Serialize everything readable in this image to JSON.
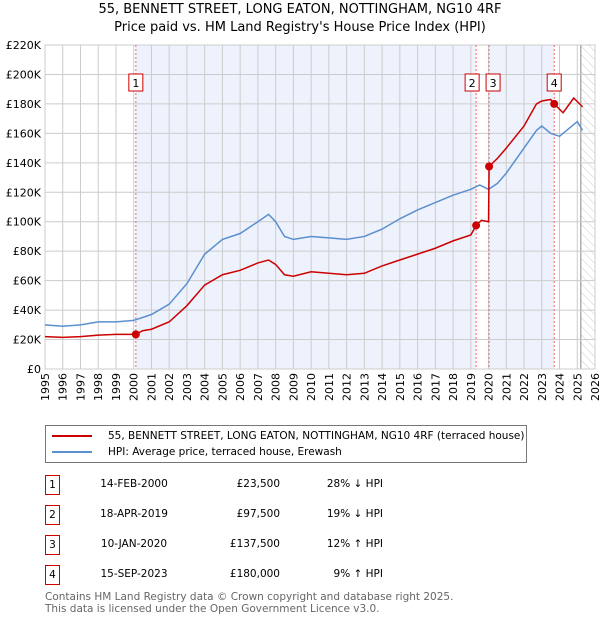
{
  "chart_data": {
    "type": "line",
    "title": "55, BENNETT STREET, LONG EATON, NOTTINGHAM, NG10 4RF",
    "subtitle": "Price paid vs. HM Land Registry's House Price Index (HPI)",
    "xlim": [
      1995,
      2026
    ],
    "ylim": [
      0,
      220000
    ],
    "x_ticks": [
      "1995",
      "1996",
      "1997",
      "1998",
      "1999",
      "2000",
      "2001",
      "2002",
      "2003",
      "2004",
      "2005",
      "2006",
      "2007",
      "2008",
      "2009",
      "2010",
      "2011",
      "2012",
      "2013",
      "2014",
      "2015",
      "2016",
      "2017",
      "2018",
      "2019",
      "2020",
      "2021",
      "2022",
      "2023",
      "2024",
      "2025",
      "2026"
    ],
    "y_ticks": [
      {
        "v": 0,
        "label": "£0"
      },
      {
        "v": 20000,
        "label": "£20K"
      },
      {
        "v": 40000,
        "label": "£40K"
      },
      {
        "v": 60000,
        "label": "£60K"
      },
      {
        "v": 80000,
        "label": "£80K"
      },
      {
        "v": 100000,
        "label": "£100K"
      },
      {
        "v": 120000,
        "label": "£120K"
      },
      {
        "v": 140000,
        "label": "£140K"
      },
      {
        "v": 160000,
        "label": "£160K"
      },
      {
        "v": 180000,
        "label": "£180K"
      },
      {
        "v": 200000,
        "label": "£200K"
      },
      {
        "v": 220000,
        "label": "£220K"
      }
    ],
    "grid": true,
    "series": [
      {
        "name": "55, BENNETT STREET, LONG EATON, NOTTINGHAM, NG10 4RF (terraced house)",
        "color": "#cc0000",
        "x": [
          1995,
          1996,
          1997,
          1998,
          1999,
          2000.1,
          2000.5,
          2001,
          2002,
          2003,
          2004,
          2005,
          2006,
          2007,
          2007.6,
          2008,
          2008.5,
          2009,
          2010,
          2011,
          2012,
          2013,
          2014,
          2015,
          2016,
          2017,
          2018,
          2019,
          2019.3,
          2019.6,
          2020.0,
          2020.03,
          2020.5,
          2021,
          2022,
          2022.7,
          2023,
          2023.5,
          2023.7,
          2024.2,
          2024.8,
          2025.3
        ],
        "y": [
          22000,
          21500,
          22000,
          23000,
          23500,
          23500,
          26000,
          27000,
          32000,
          43000,
          57000,
          64000,
          67000,
          72000,
          74000,
          71000,
          64000,
          63000,
          66000,
          65000,
          64000,
          65000,
          70000,
          74000,
          78000,
          82000,
          87000,
          91000,
          97500,
          101000,
          100000,
          137500,
          143000,
          150000,
          165000,
          180000,
          182000,
          183000,
          180000,
          174000,
          184000,
          178000
        ]
      },
      {
        "name": "HPI: Average price, terraced house, Erewash",
        "color": "#5b8fd0",
        "x": [
          1995,
          1996,
          1997,
          1998,
          1999,
          2000,
          2001,
          2002,
          2003,
          2004,
          2005,
          2006,
          2007,
          2007.6,
          2008,
          2008.5,
          2009,
          2010,
          2011,
          2012,
          2013,
          2014,
          2015,
          2016,
          2017,
          2018,
          2019,
          2019.5,
          2020,
          2020.5,
          2021,
          2022,
          2022.7,
          2023,
          2023.5,
          2024,
          2024.5,
          2025,
          2025.3
        ],
        "y": [
          30000,
          29000,
          30000,
          32000,
          32000,
          33000,
          37000,
          44000,
          58000,
          78000,
          88000,
          92000,
          100000,
          105000,
          100000,
          90000,
          88000,
          90000,
          89000,
          88000,
          90000,
          95000,
          102000,
          108000,
          113000,
          118000,
          122000,
          125000,
          122000,
          126000,
          133000,
          150000,
          162000,
          165000,
          160000,
          158000,
          163000,
          168000,
          162000
        ]
      }
    ],
    "sales": [
      {
        "n": "1",
        "x": 2000.12,
        "value": 23500,
        "date": "14-FEB-2000",
        "price": "£23,500",
        "hpi": "28% ↓ HPI"
      },
      {
        "n": "2",
        "x": 2019.3,
        "value": 97500,
        "date": "18-APR-2019",
        "price": "£97,500",
        "hpi": "19% ↓ HPI"
      },
      {
        "n": "3",
        "x": 2020.03,
        "value": 137500,
        "date": "10-JAN-2020",
        "price": "£137,500",
        "hpi": "12% ↑ HPI"
      },
      {
        "n": "4",
        "x": 2023.7,
        "value": 180000,
        "date": "15-SEP-2023",
        "price": "£180,000",
        "hpi": "9% ↑ HPI"
      }
    ],
    "forecast_start": 2025.2
  },
  "footer": {
    "line1": "Contains HM Land Registry data © Crown copyright and database right 2025.",
    "line2": "This data is licensed under the Open Government Licence v3.0."
  }
}
